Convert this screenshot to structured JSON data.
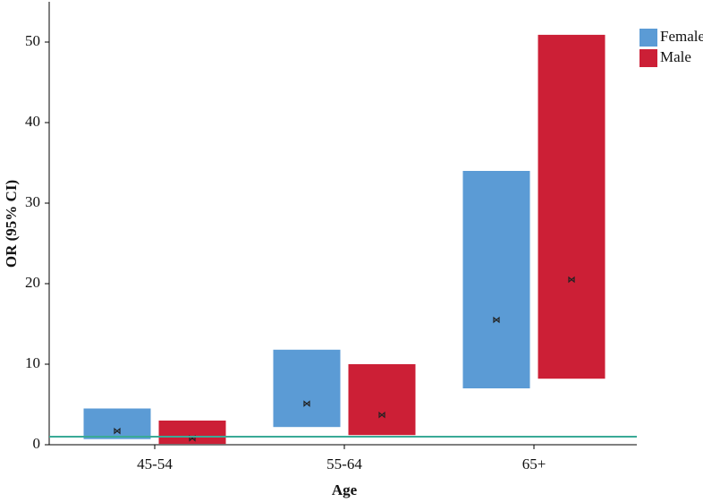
{
  "chart_data": {
    "type": "range_bar",
    "x_label": "Age",
    "y_label": "OR (95% CI)",
    "categories": [
      "45-54",
      "55-64",
      "65+"
    ],
    "series": [
      {
        "name": "Female",
        "color": "#5b9bd5",
        "values": [
          1.7,
          5.1,
          15.5
        ],
        "low": [
          0.7,
          2.2,
          7.0
        ],
        "high": [
          4.5,
          11.8,
          34.0
        ]
      },
      {
        "name": "Male",
        "color": "#cc1f36",
        "values": [
          0.8,
          3.7,
          20.5
        ],
        "low": [
          0.1,
          1.2,
          8.2
        ],
        "high": [
          3.0,
          10.0,
          50.9
        ]
      }
    ],
    "reference_line": 1,
    "reference_color": "#3aaa96",
    "ylim": [
      0,
      55
    ],
    "yticks": [
      0,
      10,
      20,
      30,
      40,
      50
    ],
    "grid": false,
    "legend": "top-right"
  }
}
